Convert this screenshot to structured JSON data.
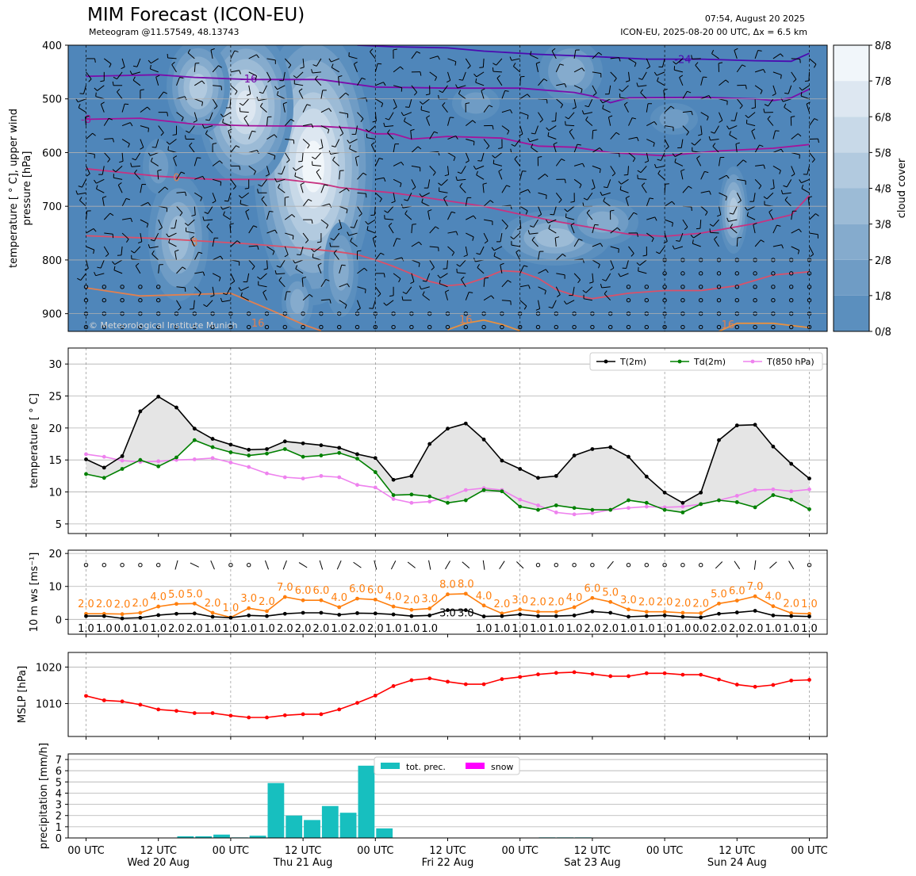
{
  "header": {
    "title": "MIM Forecast (ICON-EU)",
    "subtitle": "Meteogram @11.57549, 48.13743",
    "issued": "07:54, August 20 2025",
    "run": "ICON-EU, 2025-08-20 00 UTC, Δx = 6.5 km",
    "copyright": "© Meteorological Institute Munich"
  },
  "colors": {
    "cloud_levels": [
      "#4f86ba",
      "#5b8fbe",
      "#6f9cc5",
      "#85abcd",
      "#9cbbd6",
      "#b2cadf",
      "#c8d9e8",
      "#dde7f1",
      "#f1f6fa"
    ],
    "t2m": "#000000",
    "td2m": "#008000",
    "t850": "#ee82ee",
    "wind_speed": "#ff7f0e",
    "wind_gust_alt": "#000000",
    "mslp": "#ff0000",
    "precip": "#17bfbf",
    "snow": "#ff00ff",
    "fill": "#e5e5e5"
  },
  "chart_data": [
    {
      "type": "heatmap",
      "name": "upper_air",
      "ylabel": "temperature [$^\\circ$C], upper wind pressure [hPa]",
      "ylabel_lines": [
        "temperature [ ° C], upper wind",
        "pressure [hPa]"
      ],
      "yticks": [
        400,
        500,
        600,
        700,
        800,
        900
      ],
      "ylim": [
        933,
        400
      ],
      "colorbar": {
        "label": "cloud cover",
        "ticks": [
          "0/8",
          "1/8",
          "2/8",
          "3/8",
          "4/8",
          "5/8",
          "6/8",
          "7/8",
          "8/8"
        ]
      },
      "isotherm_labels": [
        {
          "text": "-24",
          "x": 33,
          "p": 426
        },
        {
          "text": "-16",
          "x": 9,
          "p": 462
        },
        {
          "text": "-8",
          "x": 0,
          "p": 537
        },
        {
          "text": "0",
          "x": 5,
          "p": 646
        },
        {
          "text": "8",
          "x": 6,
          "p": 766
        },
        {
          "text": "16",
          "x": 9.5,
          "p": 917
        },
        {
          "text": "16",
          "x": 21,
          "p": 910
        },
        {
          "text": "16",
          "x": 35.5,
          "p": 920
        }
      ]
    },
    {
      "type": "line",
      "name": "temperature",
      "ylabel": "temperature [$^\\circ$C]",
      "ylabel_text": "temperature [ ° C]",
      "ylim": [
        3.5,
        32.5
      ],
      "yticks": [
        5,
        10,
        15,
        20,
        25,
        30
      ],
      "legend": "top-right",
      "series": [
        {
          "name": "T(2m)",
          "values": [
            15.1,
            13.8,
            15.6,
            22.6,
            24.9,
            23.2,
            19.9,
            18.3,
            17.4,
            16.6,
            16.7,
            17.9,
            17.6,
            17.3,
            16.9,
            15.9,
            15.3,
            11.9,
            12.5,
            17.5,
            19.9,
            20.7,
            18.2,
            14.9,
            13.6,
            12.2,
            12.5,
            15.7,
            16.7,
            17.0,
            15.5,
            12.4,
            9.9,
            8.3,
            9.9,
            18.1,
            20.4,
            20.5,
            17.1,
            14.4,
            12.1
          ]
        },
        {
          "name": "Td(2m)",
          "values": [
            12.8,
            12.2,
            13.6,
            15.0,
            14.0,
            15.4,
            18.1,
            17.0,
            16.2,
            15.7,
            16.0,
            16.7,
            15.5,
            15.7,
            16.1,
            15.2,
            13.1,
            9.5,
            9.6,
            9.3,
            8.3,
            8.7,
            10.3,
            10.1,
            7.7,
            7.2,
            7.9,
            7.5,
            7.2,
            7.2,
            8.7,
            8.3,
            7.2,
            6.8,
            8.1,
            8.7,
            8.4,
            7.6,
            9.5,
            8.8,
            7.3
          ]
        },
        {
          "name": "T(850 hPa)",
          "values": [
            15.9,
            15.5,
            14.9,
            14.7,
            14.8,
            15.0,
            15.1,
            15.3,
            14.6,
            13.9,
            12.9,
            12.3,
            12.1,
            12.5,
            12.3,
            11.1,
            10.7,
            8.9,
            8.3,
            8.5,
            9.2,
            10.3,
            10.6,
            10.3,
            8.8,
            7.9,
            6.8,
            6.5,
            6.7,
            7.2,
            7.5,
            7.7,
            7.6,
            7.7,
            8.1,
            8.7,
            9.4,
            10.3,
            10.4,
            10.1,
            10.4
          ]
        }
      ]
    },
    {
      "type": "line",
      "name": "wind",
      "ylabel": "10 m ws [ms$^{-1}$]",
      "ylabel_text": "10 m ws [ms⁻¹]",
      "ylim": [
        -4.5,
        21
      ],
      "yticks": [
        0,
        10,
        20
      ],
      "series": [
        {
          "name": "ws_orange",
          "values": [
            2.0,
            2.0,
            2.0,
            2.0,
            4.0,
            5.0,
            5.0,
            2.0,
            1.0,
            3.0,
            2.0,
            7.0,
            6.0,
            6.0,
            4.0,
            6.0,
            6.0,
            4.0,
            2.0,
            3.0,
            8.0,
            8.0,
            4.0,
            2.0,
            3.0,
            2.0,
            2.0,
            4.0,
            6.0,
            5.0,
            3.0,
            2.0,
            2.0,
            2.0,
            2.0,
            5.0,
            6.0,
            7.0,
            4.0,
            2.0,
            1.0
          ]
        },
        {
          "name": "ws_black",
          "values": [
            1.0,
            1.0,
            0.0,
            1.0,
            1.0,
            2.0,
            2.0,
            1.0,
            1.0,
            1.0,
            1.0,
            2.0,
            2.0,
            2.0,
            1.0,
            2.0,
            2.0,
            1.0,
            1.0,
            1.0,
            3.0,
            3.0,
            1.0,
            1.0,
            1.0,
            1.0,
            1.0,
            1.0,
            2.0,
            2.0,
            1.0,
            1.0,
            1.0,
            1.0,
            0.0,
            2.0,
            2.0,
            2.0,
            1.0,
            1.0,
            1.0
          ]
        }
      ],
      "plot_values": {
        "orange": [
          1.7,
          1.7,
          1.6,
          2.0,
          3.9,
          4.7,
          4.8,
          2.0,
          0.6,
          3.4,
          2.5,
          6.8,
          5.8,
          5.8,
          3.7,
          6.3,
          6.0,
          3.9,
          2.9,
          3.3,
          7.6,
          7.8,
          4.2,
          1.8,
          3.0,
          2.3,
          2.3,
          3.7,
          6.5,
          5.3,
          3.0,
          2.3,
          2.3,
          2.0,
          1.9,
          4.8,
          5.7,
          7.0,
          4.0,
          1.9,
          1.7
        ],
        "black": [
          1.0,
          1.0,
          0.3,
          0.5,
          1.3,
          1.7,
          1.8,
          0.8,
          0.5,
          1.2,
          1.0,
          1.7,
          2.0,
          2.0,
          1.4,
          1.9,
          1.8,
          1.5,
          1.0,
          1.2,
          2.8,
          2.8,
          0.9,
          1.0,
          1.5,
          1.0,
          1.0,
          1.2,
          2.4,
          2.0,
          0.8,
          1.0,
          1.2,
          0.8,
          0.6,
          1.7,
          2.1,
          2.6,
          1.2,
          1.0,
          0.9
        ]
      }
    },
    {
      "type": "line",
      "name": "mslp",
      "ylabel": "MSLP [hPa]",
      "ylim": [
        1001,
        1024
      ],
      "yticks": [
        1010,
        1020
      ],
      "series": [
        {
          "name": "MSLP",
          "values": [
            1012.1,
            1010.9,
            1010.6,
            1009.7,
            1008.4,
            1008.0,
            1007.4,
            1007.4,
            1006.7,
            1006.2,
            1006.2,
            1006.8,
            1007.1,
            1007.1,
            1008.4,
            1010.2,
            1012.2,
            1014.8,
            1016.4,
            1016.9,
            1016.0,
            1015.3,
            1015.3,
            1016.7,
            1017.3,
            1018.0,
            1018.4,
            1018.6,
            1018.1,
            1017.5,
            1017.5,
            1018.3,
            1018.3,
            1017.9,
            1017.9,
            1016.6,
            1015.2,
            1014.6,
            1015.1,
            1016.3,
            1016.5
          ]
        }
      ]
    },
    {
      "type": "bar",
      "name": "precipitation",
      "ylabel": "precipitation [mm/h]",
      "ylim": [
        0,
        7.5
      ],
      "yticks": [
        0,
        1,
        2,
        3,
        4,
        5,
        6,
        7
      ],
      "legend": "top-center",
      "series": [
        {
          "name": "tot. prec.",
          "values": [
            0,
            0,
            0,
            0,
            0,
            0.15,
            0.15,
            0.3,
            0.05,
            0.2,
            4.9,
            2.0,
            1.6,
            2.85,
            2.25,
            6.45,
            0.85,
            0,
            0,
            0,
            0,
            0,
            0,
            0,
            0,
            0.05,
            0.05,
            0.05,
            0,
            0,
            0,
            0,
            0,
            0,
            0,
            0,
            0,
            0,
            0,
            0
          ]
        },
        {
          "name": "snow",
          "values": [
            0,
            0,
            0,
            0,
            0,
            0,
            0,
            0,
            0,
            0,
            0,
            0,
            0,
            0,
            0,
            0,
            0,
            0,
            0,
            0,
            0,
            0,
            0,
            0,
            0,
            0,
            0,
            0,
            0,
            0,
            0,
            0,
            0,
            0,
            0,
            0,
            0,
            0,
            0,
            0
          ]
        }
      ]
    }
  ],
  "x_axis": {
    "tick_labels": [
      "00 UTC",
      "12 UTC",
      "00 UTC",
      "12 UTC",
      "00 UTC",
      "12 UTC",
      "00 UTC",
      "12 UTC",
      "00 UTC",
      "12 UTC",
      "00 UTC"
    ],
    "day_labels": [
      "Wed 20 Aug",
      "Thu 21 Aug",
      "Fri 22 Aug",
      "Sat 23 Aug",
      "Sun 24 Aug"
    ],
    "step_hours": 3
  }
}
